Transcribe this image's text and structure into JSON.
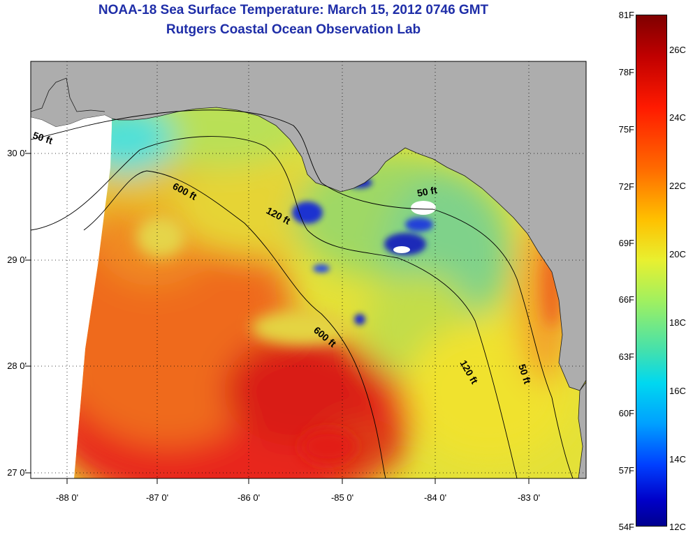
{
  "title": {
    "line1": "NOAA-18 Sea Surface Temperature:  March 15, 2012 0746 GMT",
    "line2": "Rutgers Coastal Ocean Observation Lab"
  },
  "axes": {
    "lat_ticks": [
      {
        "value": 30.0,
        "label": "30 0'"
      },
      {
        "value": 29.0,
        "label": "29 0'"
      },
      {
        "value": 28.0,
        "label": "28 0'"
      },
      {
        "value": 27.0,
        "label": "27 0'"
      }
    ],
    "lon_ticks": [
      {
        "value": -88.0,
        "label": "-88 0'"
      },
      {
        "value": -87.0,
        "label": "-87 0'"
      },
      {
        "value": -86.0,
        "label": "-86 0'"
      },
      {
        "value": -85.0,
        "label": "-85 0'"
      },
      {
        "value": -84.0,
        "label": "-84 0'"
      },
      {
        "value": -83.0,
        "label": "-83 0'"
      }
    ]
  },
  "contours": {
    "label_50": "50 ft",
    "label_120": "120 ft",
    "label_600": "600 ft"
  },
  "colorbar": {
    "fahrenheit": [
      "81F",
      "78F",
      "75F",
      "72F",
      "69F",
      "66F",
      "63F",
      "60F",
      "57F",
      "54F"
    ],
    "celsius": [
      "26C",
      "24C",
      "22C",
      "20C",
      "18C",
      "16C",
      "14C",
      "12C"
    ]
  },
  "colors": {
    "land": "#adadad",
    "title": "#1f2ea8",
    "cold": "#00008f",
    "hot": "#7f0000"
  }
}
